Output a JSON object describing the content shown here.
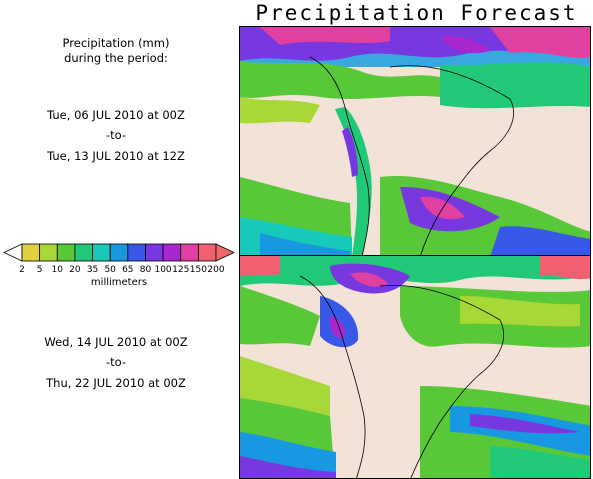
{
  "title": "Precipitation Forecast",
  "caption": {
    "line1": "Precipitation (mm)",
    "line2": "during the period:"
  },
  "period1": {
    "start": "Tue, 06 JUL 2010 at 00Z",
    "sep": "-to-",
    "end": "Tue, 13 JUL 2010 at 12Z"
  },
  "period2": {
    "start": "Wed, 14 JUL 2010 at 00Z",
    "sep": "-to-",
    "end": "Thu, 22 JUL 2010 at 00Z"
  },
  "legend": {
    "units": "millimeters",
    "ticks": [
      "2",
      "5",
      "10",
      "20",
      "35",
      "50",
      "65",
      "80",
      "100",
      "125",
      "150",
      "200"
    ],
    "colors": [
      "#e0d040",
      "#a8d838",
      "#58c838",
      "#20c878",
      "#18c8b8",
      "#1898e0",
      "#3858e8",
      "#7838e0",
      "#a828d0",
      "#e040a0",
      "#f06070"
    ],
    "under_color": "#ffffff",
    "over_color": "#f06868"
  }
}
